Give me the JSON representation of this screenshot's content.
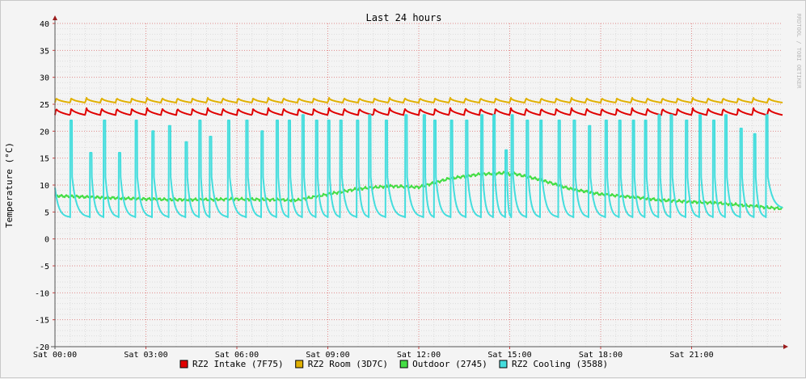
{
  "chart_data": {
    "type": "line",
    "title": "Last 24 hours",
    "ylabel": "Temperature (°C)",
    "watermark": "RRDTOOL / TOBI OETIKER",
    "ylim": [
      -20,
      40
    ],
    "xlim_hours": [
      0,
      24
    ],
    "y_ticks": [
      40,
      35,
      30,
      25,
      20,
      15,
      10,
      5,
      0,
      -5,
      -10,
      -15,
      -20
    ],
    "x_tick_labels": [
      "Sat 00:00",
      "Sat 03:00",
      "Sat 06:00",
      "Sat 09:00",
      "Sat 12:00",
      "Sat 15:00",
      "Sat 18:00",
      "Sat 21:00"
    ],
    "grid": true,
    "legend_position": "bottom-center",
    "series": [
      {
        "name": "RZ2 Intake (7F75)",
        "color": "#e00000",
        "pattern": "sawtooth",
        "base": 23.0,
        "peak": 24.3,
        "period_hours": 0.5
      },
      {
        "name": "RZ2 Room (3D7C)",
        "color": "#e0b000",
        "pattern": "sawtooth",
        "base": 25.3,
        "peak": 26.2,
        "period_hours": 0.5
      },
      {
        "name": "Outdoor (2745)",
        "color": "#44dd44",
        "pattern": "smooth",
        "x_hours": [
          0,
          1,
          2,
          3,
          4,
          5,
          6,
          7,
          8,
          9,
          10,
          11,
          12,
          13,
          14,
          15,
          16,
          17,
          18,
          19,
          20,
          21,
          22,
          23,
          24
        ],
        "values": [
          8.0,
          7.8,
          7.6,
          7.4,
          7.3,
          7.3,
          7.4,
          7.3,
          7.2,
          8.3,
          9.3,
          9.8,
          9.6,
          11.2,
          12.0,
          12.3,
          11.0,
          9.3,
          8.3,
          7.8,
          7.2,
          6.9,
          6.6,
          6.1,
          5.6
        ],
        "drop_hour": 15.0,
        "drop_to": 11.8
      },
      {
        "name": "RZ2 Cooling (3588)",
        "color": "#44dddd",
        "pattern": "spikes",
        "spike_hours": [
          0.5,
          1.15,
          1.6,
          2.1,
          2.65,
          3.2,
          3.75,
          4.3,
          4.75,
          5.1,
          5.7,
          6.3,
          6.8,
          7.3,
          7.7,
          8.15,
          8.6,
          9.0,
          9.4,
          9.95,
          10.35,
          10.9,
          11.55,
          12.15,
          12.5,
          13.05,
          13.55,
          14.05,
          14.45,
          14.85,
          15.05,
          15.55,
          16.0,
          16.6,
          17.1,
          17.6,
          18.15,
          18.6,
          19.05,
          19.45,
          19.9,
          20.3,
          20.8,
          21.25,
          21.7,
          22.1,
          22.6,
          23.05,
          23.45
        ],
        "spike_peaks": [
          22.0,
          16.0,
          22.0,
          16.0,
          22.0,
          20.0,
          21.0,
          18.0,
          22.0,
          19.0,
          22.0,
          22.0,
          20.0,
          22.0,
          22.0,
          23.0,
          22.0,
          22.0,
          22.0,
          22.0,
          23.0,
          22.0,
          23.0,
          23.0,
          22.0,
          22.0,
          22.0,
          23.0,
          23.0,
          16.5,
          23.0,
          22.0,
          22.0,
          22.0,
          22.0,
          21.0,
          22.0,
          22.0,
          22.0,
          22.0,
          23.0,
          23.0,
          22.0,
          23.0,
          22.0,
          23.0,
          20.5,
          19.5,
          23.0
        ],
        "baseline_min": 4.0,
        "after_spike": 11.5,
        "start_value": 9.5
      }
    ]
  }
}
